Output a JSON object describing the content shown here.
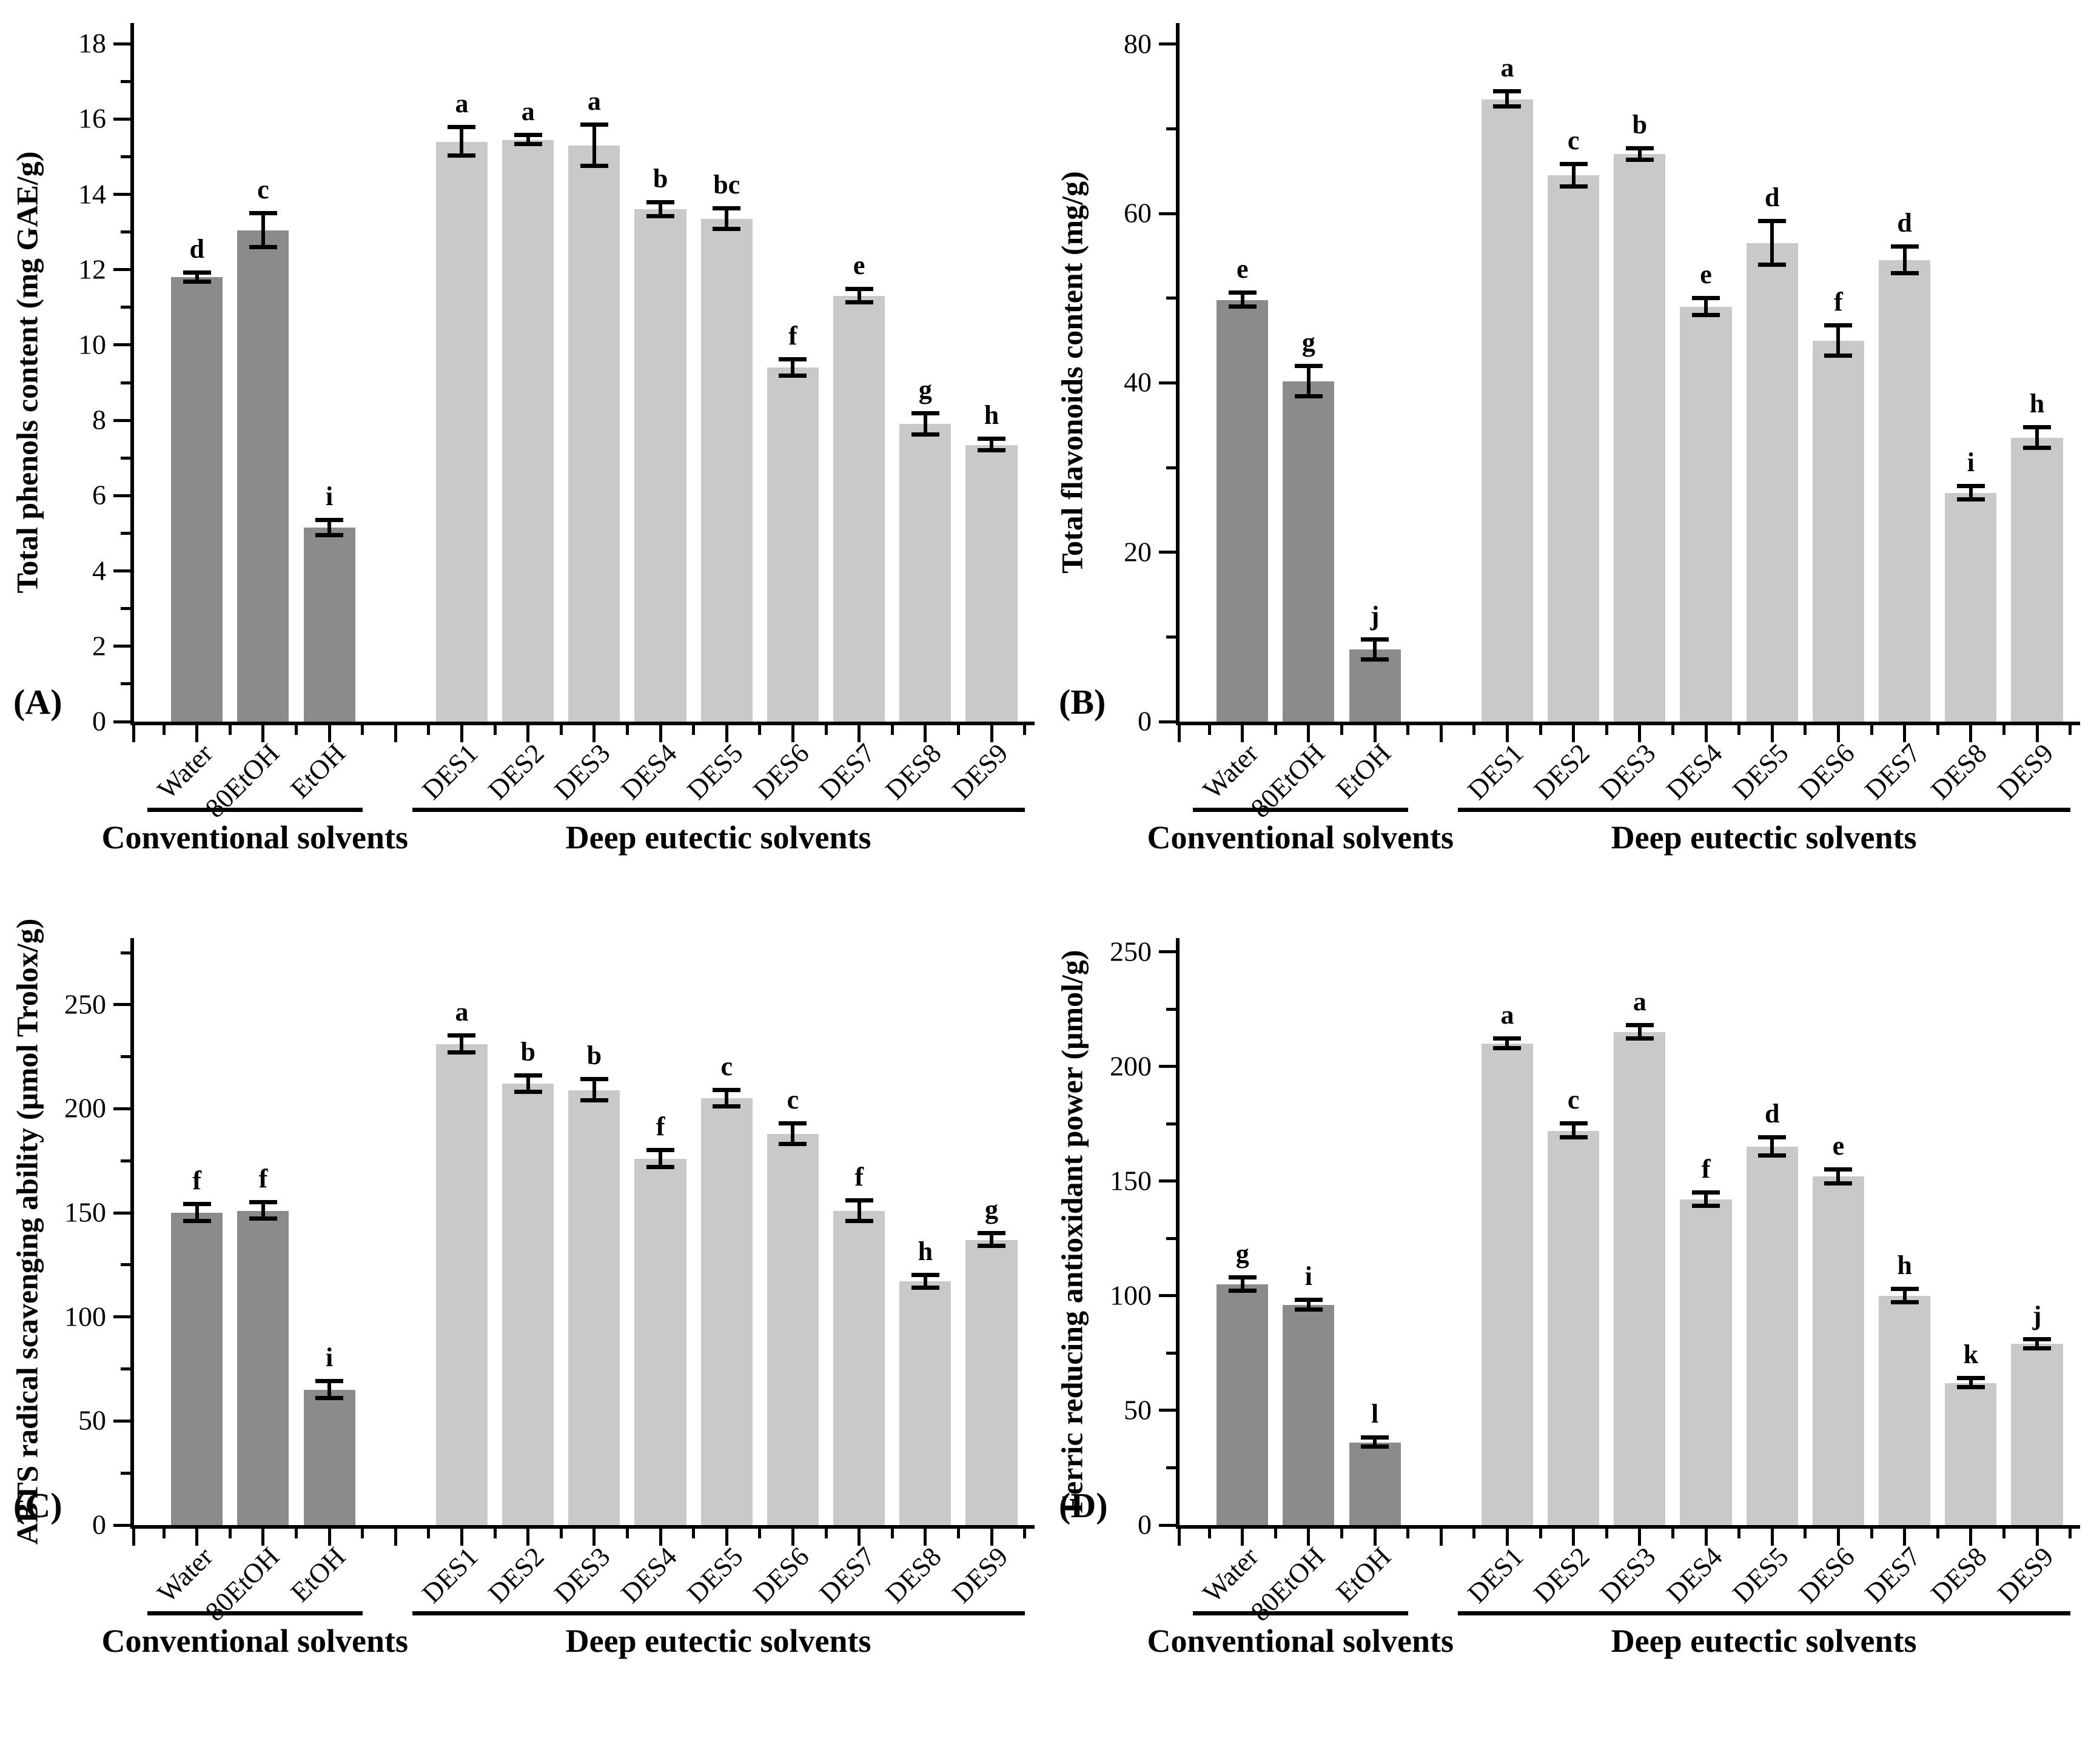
{
  "figure": {
    "panel_labels": [
      "(A)",
      "(B)",
      "(C)",
      "(D)"
    ],
    "group_labels": {
      "conventional": "Conventional solvents",
      "des": "Deep eutectic solvents"
    }
  },
  "colors": {
    "conventional_bar": "#8b8b8b",
    "des_bar": "#c9c9c9",
    "ink": "#000000",
    "background": "#ffffff"
  },
  "chart_data": [
    {
      "panel_label": "(A)",
      "type": "bar",
      "ylabel": "Total phenols content (mg GAE/g)",
      "xlabel": "",
      "ylim": [
        0,
        18
      ],
      "yticks": [
        0,
        2,
        4,
        6,
        8,
        10,
        12,
        14,
        16,
        18
      ],
      "grid": false,
      "legend_position": "none",
      "categories": [
        "Water",
        "80EtOH",
        "EtOH",
        "DES1",
        "DES2",
        "DES3",
        "DES4",
        "DES5",
        "DES6",
        "DES7",
        "DES8",
        "DES9"
      ],
      "values": [
        11.8,
        13.05,
        5.15,
        15.4,
        15.45,
        15.3,
        13.6,
        13.35,
        9.4,
        11.3,
        7.9,
        7.35
      ],
      "errors": [
        0.12,
        0.45,
        0.2,
        0.38,
        0.12,
        0.55,
        0.18,
        0.28,
        0.22,
        0.18,
        0.28,
        0.15
      ],
      "sig_letters": [
        "d",
        "c",
        "i",
        "a",
        "a",
        "a",
        "b",
        "bc",
        "f",
        "e",
        "g",
        "h"
      ],
      "groups": [
        {
          "label": "Conventional solvents",
          "category_span": [
            0,
            2
          ]
        },
        {
          "label": "Deep eutectic solvents",
          "category_span": [
            3,
            11
          ]
        }
      ]
    },
    {
      "panel_label": "(B)",
      "type": "bar",
      "ylabel": "Total flavonoids content (mg/g)",
      "xlabel": "",
      "ylim": [
        0,
        80
      ],
      "yticks": [
        0,
        20,
        40,
        60,
        80
      ],
      "grid": false,
      "legend_position": "none",
      "categories": [
        "Water",
        "80EtOH",
        "EtOH",
        "DES1",
        "DES2",
        "DES3",
        "DES4",
        "DES5",
        "DES6",
        "DES7",
        "DES8",
        "DES9"
      ],
      "values": [
        49.8,
        40.2,
        8.5,
        73.5,
        64.5,
        67.0,
        49.0,
        56.5,
        45.0,
        54.5,
        27.0,
        33.5
      ],
      "errors": [
        0.8,
        1.8,
        1.2,
        0.9,
        1.3,
        0.7,
        1.0,
        2.6,
        1.8,
        1.6,
        0.8,
        1.2
      ],
      "sig_letters": [
        "e",
        "g",
        "j",
        "a",
        "c",
        "b",
        "e",
        "d",
        "f",
        "d",
        "i",
        "h"
      ],
      "groups": [
        {
          "label": "Conventional solvents",
          "category_span": [
            0,
            2
          ]
        },
        {
          "label": "Deep eutectic solvents",
          "category_span": [
            3,
            11
          ]
        }
      ]
    },
    {
      "panel_label": "(C)",
      "type": "bar",
      "ylabel": "ABTS radical scavenging ability (μmol Trolox/g)",
      "xlabel": "",
      "ylim": [
        0,
        250
      ],
      "yticks": [
        0,
        50,
        100,
        150,
        200,
        250
      ],
      "grid": false,
      "legend_position": "none",
      "categories": [
        "Water",
        "80EtOH",
        "EtOH",
        "DES1",
        "DES2",
        "DES3",
        "DES4",
        "DES5",
        "DES6",
        "DES7",
        "DES8",
        "DES9"
      ],
      "values": [
        150,
        151,
        65,
        231,
        212,
        209,
        176,
        205,
        188,
        151,
        117,
        137
      ],
      "errors": [
        4,
        4,
        4,
        4,
        4,
        5,
        4,
        4,
        5,
        5,
        3,
        3
      ],
      "sig_letters": [
        "f",
        "f",
        "i",
        "a",
        "b",
        "b",
        "f",
        "c",
        "c",
        "f",
        "h",
        "g"
      ],
      "groups": [
        {
          "label": "Conventional solvents",
          "category_span": [
            0,
            2
          ]
        },
        {
          "label": "Deep eutectic solvents",
          "category_span": [
            3,
            11
          ]
        }
      ]
    },
    {
      "panel_label": "(D)",
      "type": "bar",
      "ylabel": "Ferric reducing antioxidant power (μmol/g)",
      "xlabel": "",
      "ylim": [
        0,
        250
      ],
      "yticks": [
        0,
        50,
        100,
        150,
        200,
        250
      ],
      "grid": false,
      "legend_position": "none",
      "categories": [
        "Water",
        "80EtOH",
        "EtOH",
        "DES1",
        "DES2",
        "DES3",
        "DES4",
        "DES5",
        "DES6",
        "DES7",
        "DES8",
        "DES9"
      ],
      "values": [
        105,
        96,
        36,
        210,
        172,
        215,
        142,
        165,
        152,
        100,
        62,
        79
      ],
      "errors": [
        3,
        2,
        2,
        2,
        3,
        3,
        3,
        4,
        3,
        3,
        2,
        2
      ],
      "sig_letters": [
        "g",
        "i",
        "l",
        "a",
        "c",
        "a",
        "f",
        "d",
        "e",
        "h",
        "k",
        "j"
      ],
      "groups": [
        {
          "label": "Conventional solvents",
          "category_span": [
            0,
            2
          ]
        },
        {
          "label": "Deep eutectic solvents",
          "category_span": [
            3,
            11
          ]
        }
      ]
    }
  ]
}
